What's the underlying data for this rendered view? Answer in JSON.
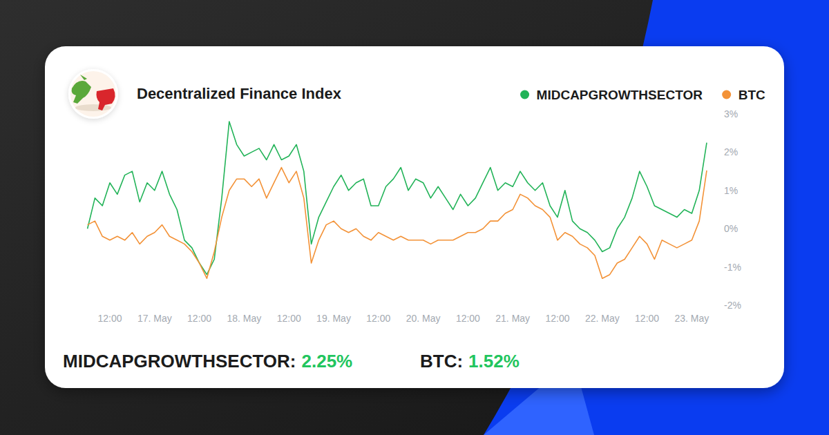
{
  "chart_data": {
    "type": "line",
    "title": "Decentralized Finance Index",
    "categories": [
      null,
      null,
      null,
      "12:00",
      null,
      null,
      null,
      null,
      null,
      "17. May",
      null,
      null,
      null,
      null,
      null,
      "12:00",
      null,
      null,
      null,
      null,
      null,
      "18. May",
      null,
      null,
      null,
      null,
      null,
      "12:00",
      null,
      null,
      null,
      null,
      null,
      "19. May",
      null,
      null,
      null,
      null,
      null,
      "12:00",
      null,
      null,
      null,
      null,
      null,
      "20. May",
      null,
      null,
      null,
      null,
      null,
      "12:00",
      null,
      null,
      null,
      null,
      null,
      "21. May",
      null,
      null,
      null,
      null,
      null,
      "12:00",
      null,
      null,
      null,
      null,
      null,
      "22. May",
      null,
      null,
      null,
      null,
      null,
      "12:00",
      null,
      null,
      null,
      null,
      null,
      "23. May",
      null,
      null
    ],
    "series": [
      {
        "name": "MIDCAPGROWTHSECTOR",
        "color": "#22b358",
        "values": [
          0.0,
          0.8,
          0.6,
          1.2,
          0.9,
          1.4,
          1.5,
          0.7,
          1.2,
          1.0,
          1.5,
          0.9,
          0.5,
          -0.3,
          -0.5,
          -0.9,
          -1.2,
          -0.8,
          0.8,
          2.8,
          2.2,
          1.9,
          2.0,
          2.1,
          1.8,
          2.2,
          1.8,
          1.9,
          2.2,
          1.5,
          -0.4,
          0.3,
          0.7,
          1.1,
          1.4,
          1.0,
          1.2,
          1.3,
          0.6,
          0.6,
          1.1,
          1.3,
          1.6,
          1.0,
          1.3,
          1.2,
          0.8,
          1.1,
          0.8,
          0.5,
          0.9,
          0.6,
          0.8,
          1.2,
          1.6,
          1.0,
          1.2,
          1.1,
          1.5,
          1.2,
          1.0,
          1.2,
          0.6,
          0.3,
          1.0,
          0.2,
          0.0,
          -0.1,
          -0.3,
          -0.6,
          -0.5,
          0.0,
          0.3,
          0.8,
          1.5,
          1.1,
          0.6,
          0.5,
          0.4,
          0.3,
          0.5,
          0.4,
          1.0,
          2.25
        ]
      },
      {
        "name": "BTC",
        "color": "#f39237",
        "values": [
          0.1,
          0.2,
          -0.2,
          -0.3,
          -0.2,
          -0.3,
          -0.1,
          -0.4,
          -0.2,
          -0.1,
          0.1,
          -0.2,
          -0.3,
          -0.4,
          -0.6,
          -0.9,
          -1.3,
          -0.6,
          0.3,
          1.0,
          1.3,
          1.3,
          1.1,
          1.3,
          0.8,
          1.2,
          1.6,
          1.2,
          1.5,
          0.8,
          -0.9,
          -0.3,
          0.1,
          0.2,
          0.0,
          -0.1,
          0.0,
          -0.2,
          -0.3,
          -0.1,
          -0.2,
          -0.3,
          -0.2,
          -0.3,
          -0.3,
          -0.3,
          -0.4,
          -0.3,
          -0.3,
          -0.3,
          -0.2,
          -0.1,
          -0.1,
          0.0,
          0.2,
          0.2,
          0.4,
          0.5,
          0.9,
          0.8,
          0.6,
          0.5,
          0.3,
          -0.3,
          -0.1,
          -0.2,
          -0.4,
          -0.5,
          -0.7,
          -1.3,
          -1.2,
          -0.9,
          -0.8,
          -0.5,
          -0.2,
          -0.4,
          -0.8,
          -0.3,
          -0.4,
          -0.5,
          -0.4,
          -0.3,
          0.2,
          1.52
        ]
      }
    ],
    "ylim": [
      -2,
      3
    ],
    "yticks": [
      {
        "value": -2,
        "label": "-2%"
      },
      {
        "value": -1,
        "label": "-1%"
      },
      {
        "value": 0,
        "label": "0%"
      },
      {
        "value": 1,
        "label": "1%"
      },
      {
        "value": 2,
        "label": "2%"
      },
      {
        "value": 3,
        "label": "3%"
      }
    ],
    "grid": false,
    "legend": "top-right",
    "summary": [
      {
        "name": "MIDCAPGROWTHSECTOR:",
        "value": 2.25,
        "label": "2.25%"
      },
      {
        "name": "BTC:",
        "value": 1.52,
        "label": "1.52%"
      }
    ]
  }
}
